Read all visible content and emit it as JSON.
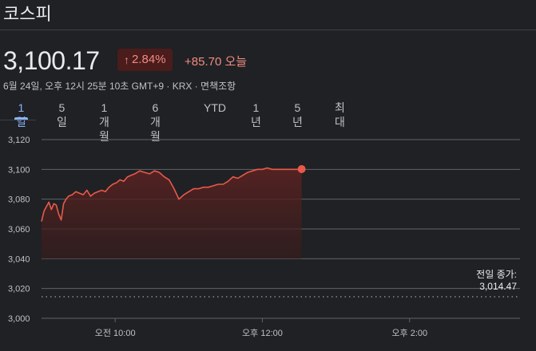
{
  "header": {
    "title": "코스피"
  },
  "quote": {
    "price": "3,100.17",
    "change_pct": "2.84%",
    "change_abs": "+85.70 오늘",
    "meta": "6월 24일, 오후 12시 25분 10초 GMT+9 · KRX · 면책조항"
  },
  "tabs": [
    {
      "label": "1일",
      "active": true
    },
    {
      "label": "5일"
    },
    {
      "label": "1개월"
    },
    {
      "label": "6개월"
    },
    {
      "label": "YTD"
    },
    {
      "label": "1년"
    },
    {
      "label": "5년"
    },
    {
      "label": "최대"
    }
  ],
  "colors": {
    "line": "#e8594a",
    "fill": "#3a1c1c",
    "grid": "#5f6368",
    "accent": "#8ab4f8",
    "up": "#f28b82"
  },
  "chart_data": {
    "type": "line",
    "ylim": [
      3000,
      3120
    ],
    "yticks": [
      "3,120",
      "3,100",
      "3,080",
      "3,060",
      "3,040",
      "3,020",
      "3,000"
    ],
    "xticks": [
      {
        "label": "오전 10:00",
        "t": 60
      },
      {
        "label": "오후 12:00",
        "t": 180
      },
      {
        "label": "오후 2:00",
        "t": 300
      }
    ],
    "x_range_minutes_from_open": [
      0,
      390
    ],
    "prev_close_label": "전일 종가:",
    "prev_close_value": "3,014.47",
    "prev_close": 3014.47,
    "series": [
      {
        "x": [
          0,
          2,
          4,
          6,
          8,
          10,
          12,
          14,
          16,
          18,
          20,
          22,
          25,
          28,
          31,
          34,
          37,
          40,
          43,
          46,
          49,
          52,
          55,
          58,
          61,
          64,
          67,
          70,
          73,
          76,
          80,
          84,
          88,
          92,
          96,
          100,
          104,
          108,
          112,
          116,
          120,
          124,
          128,
          132,
          136,
          140,
          144,
          148,
          152,
          156,
          160,
          164,
          168,
          172,
          176,
          180,
          184,
          188,
          192,
          196,
          200,
          204,
          208,
          210,
          212
        ],
        "y": [
          3065,
          3072,
          3075,
          3078,
          3073,
          3077,
          3076,
          3070,
          3066,
          3077,
          3080,
          3082,
          3083,
          3085,
          3084,
          3083,
          3086,
          3082,
          3084,
          3085,
          3086,
          3085,
          3088,
          3090,
          3091,
          3093,
          3092,
          3095,
          3096,
          3097,
          3099,
          3098,
          3097,
          3099,
          3098,
          3095,
          3093,
          3087,
          3080,
          3083,
          3085,
          3087,
          3087,
          3088,
          3088,
          3089,
          3090,
          3090,
          3092,
          3095,
          3094,
          3096,
          3098,
          3099,
          3100,
          3100,
          3101,
          3100,
          3100,
          3100,
          3100,
          3100,
          3100,
          3100,
          3100.17
        ]
      }
    ]
  }
}
